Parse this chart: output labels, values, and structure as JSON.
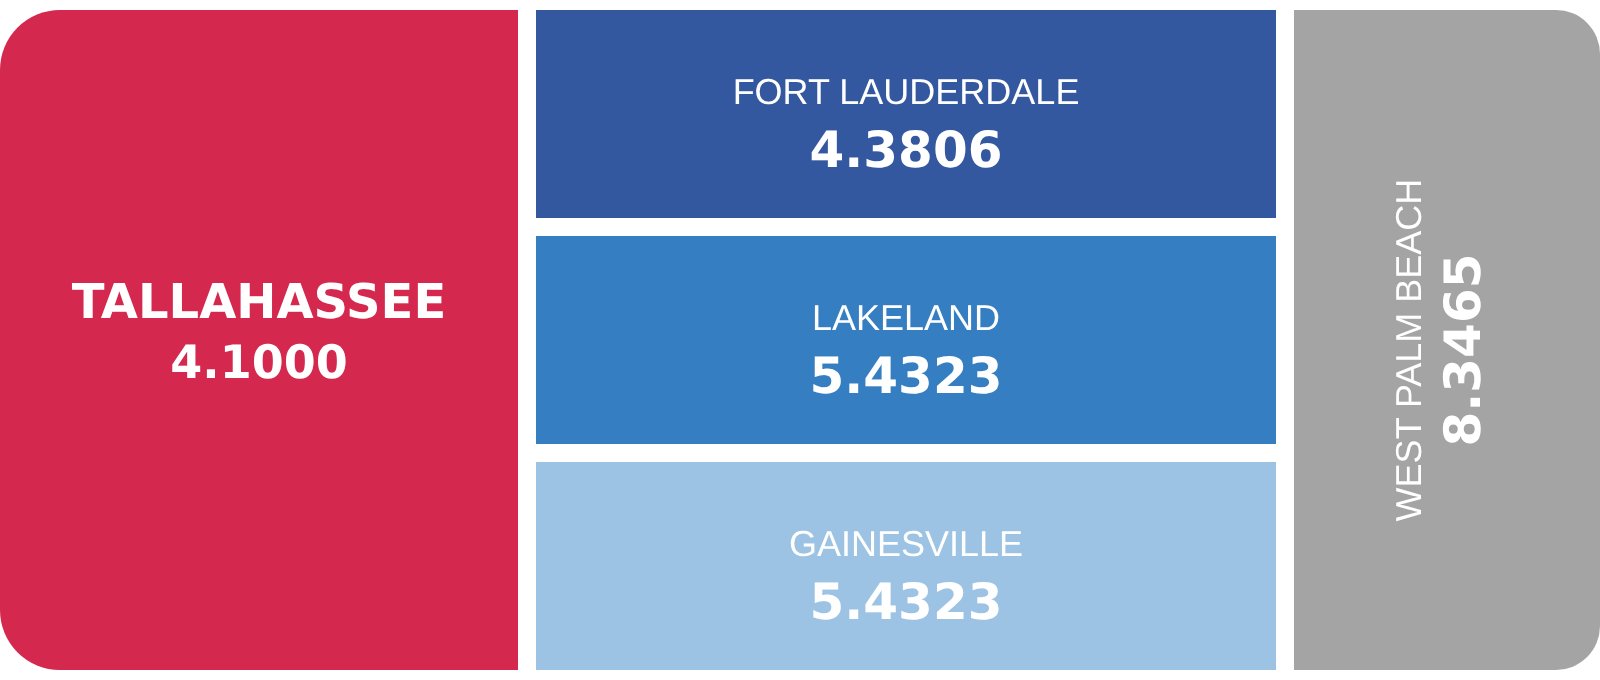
{
  "chart_data": {
    "type": "other",
    "categories": [
      "TALLAHASSEE",
      "FORT LAUDERDALE",
      "LAKELAND",
      "GAINESVILLE",
      "WEST PALM BEACH"
    ],
    "values": [
      4.1,
      4.3806,
      5.4323,
      5.4323,
      8.3465
    ],
    "value_labels": [
      "4.1000",
      "4.3806",
      "5.4323",
      "5.4323",
      "8.3465"
    ],
    "colors": [
      "#d4284f",
      "#3458a0",
      "#347ec1",
      "#9cc3e4",
      "#a4a4a4"
    ]
  }
}
